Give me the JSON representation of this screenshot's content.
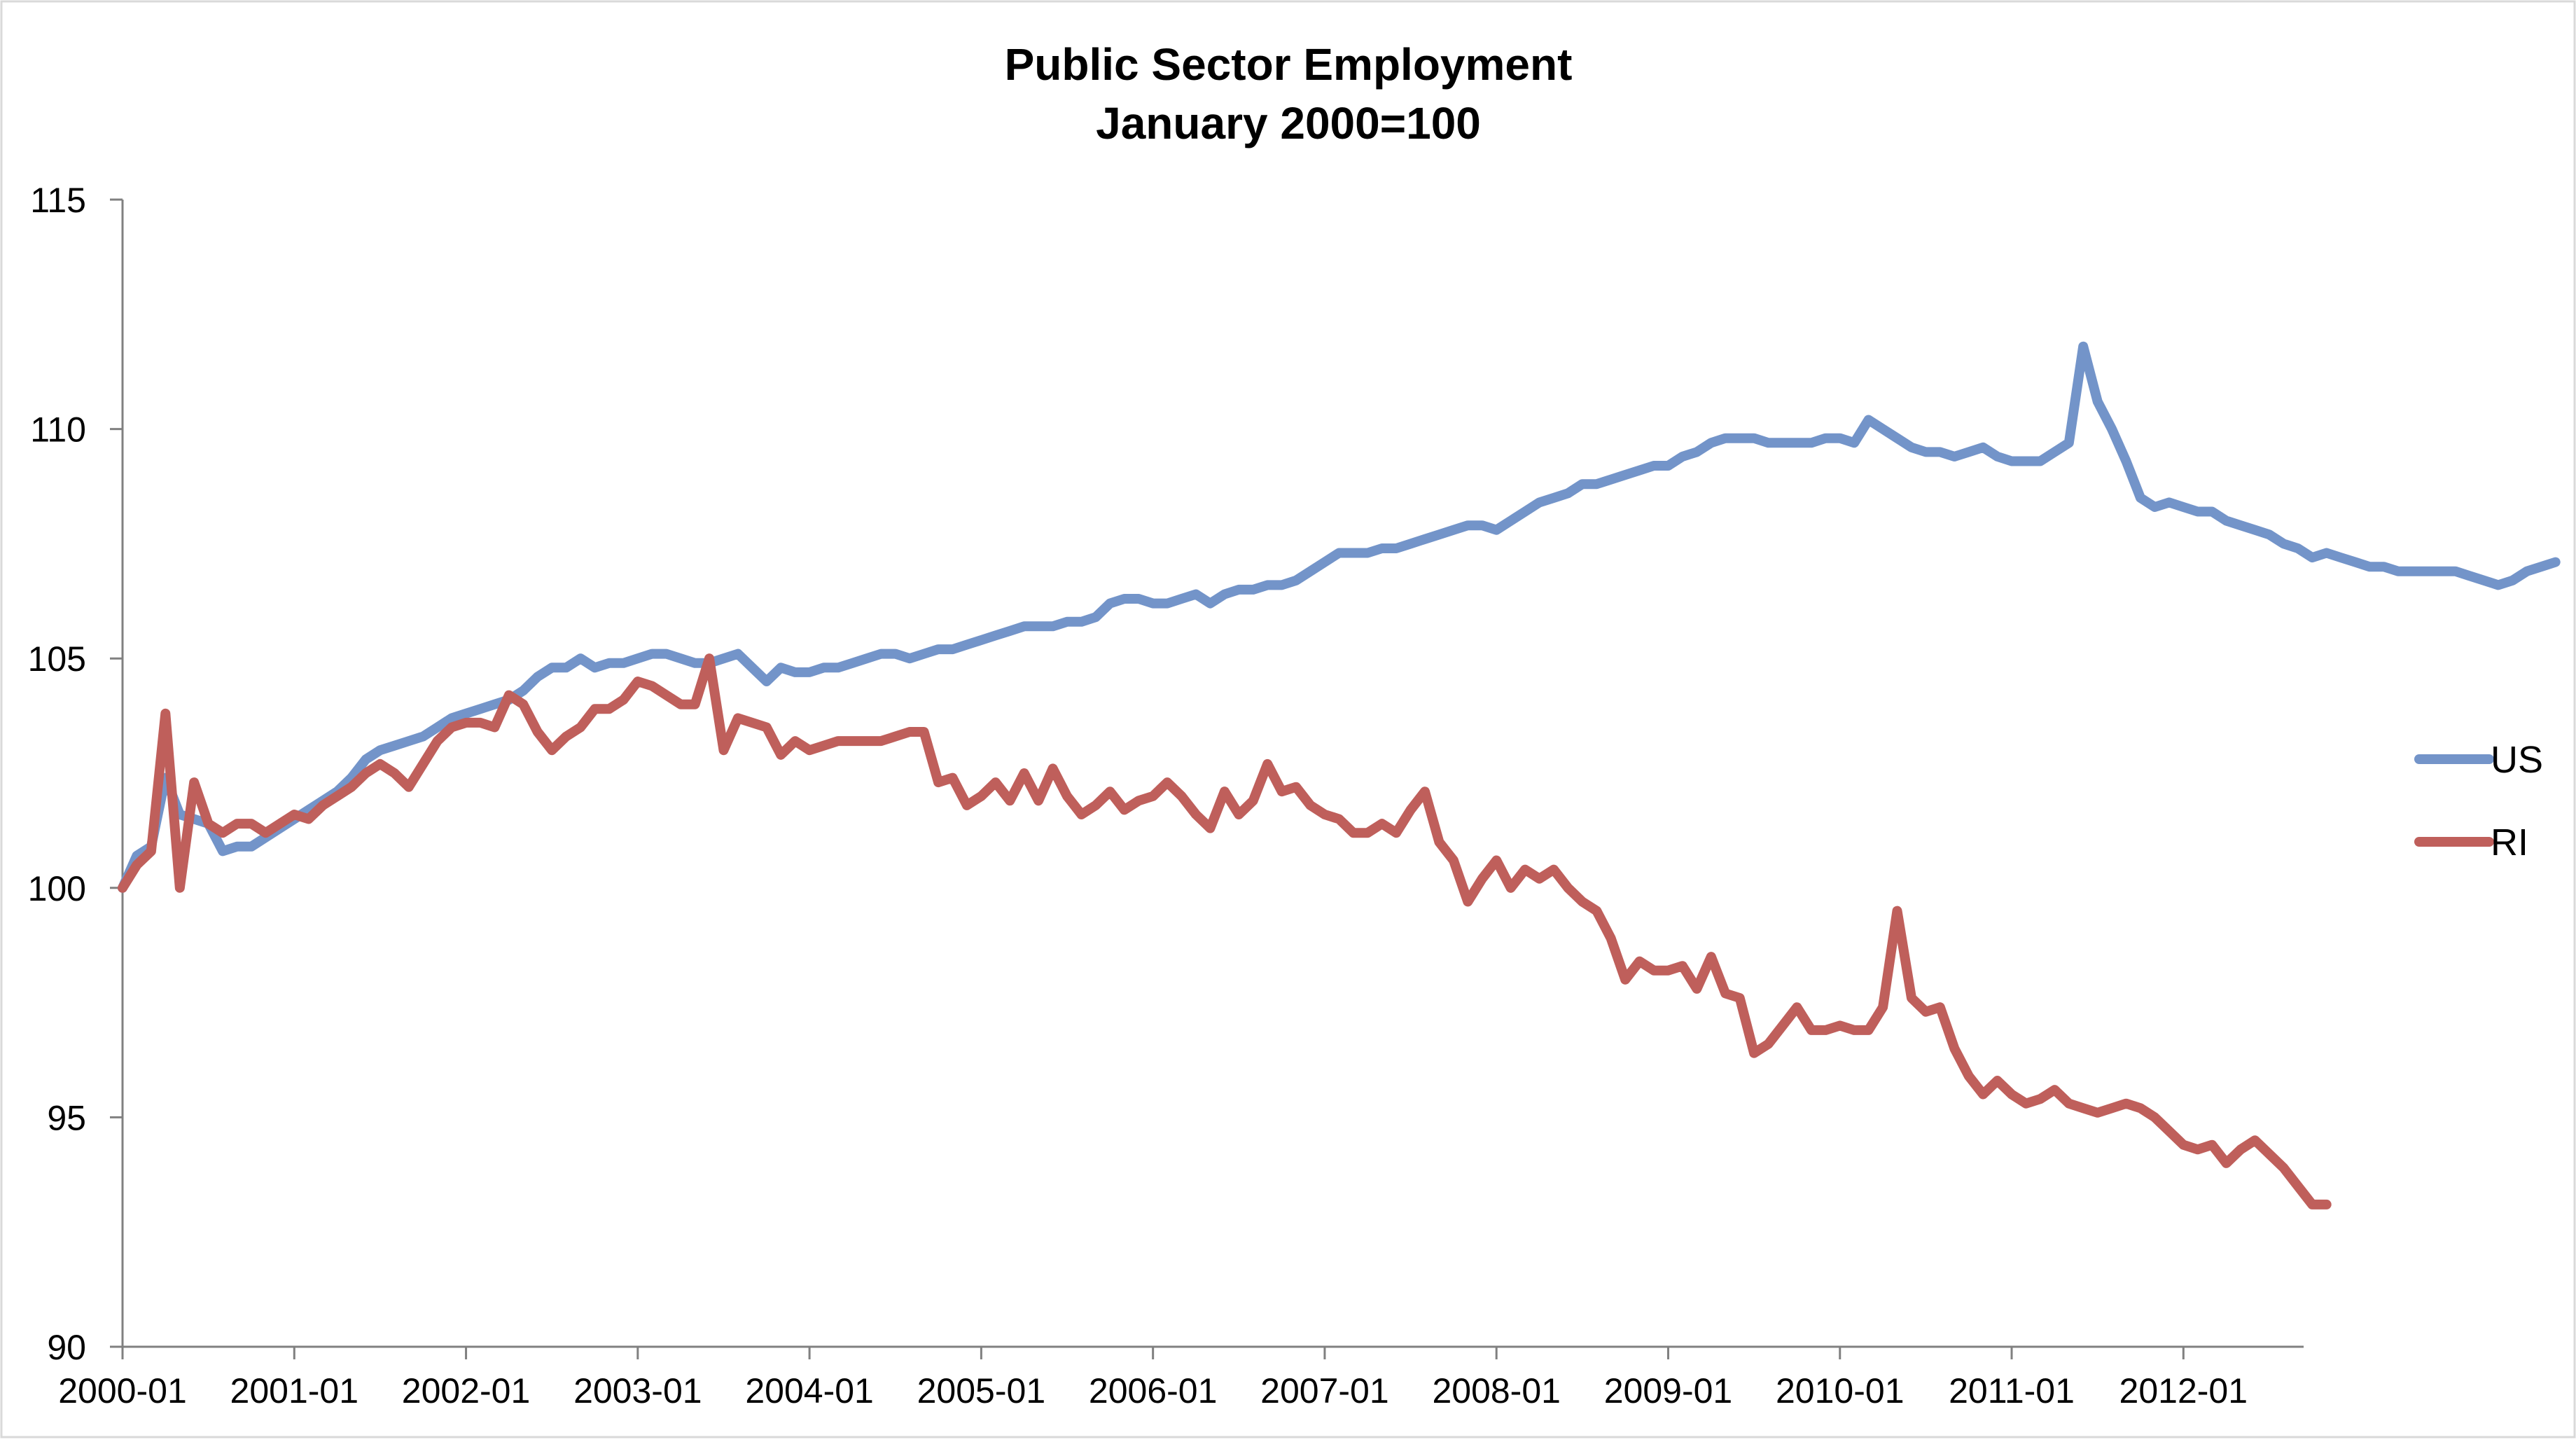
{
  "chart_data": {
    "type": "line",
    "title": "Public Sector Employment",
    "subtitle": "January 2000=100",
    "xlabel": "",
    "ylabel": "",
    "ylim": [
      90,
      115
    ],
    "y_ticks": [
      90,
      95,
      100,
      105,
      110,
      115
    ],
    "x_tick_labels": [
      "2000-01",
      "2001-01",
      "2002-01",
      "2003-01",
      "2004-01",
      "2005-01",
      "2006-01",
      "2007-01",
      "2008-01",
      "2009-01",
      "2010-01",
      "2011-01",
      "2012-01"
    ],
    "grid": false,
    "legend_position": "right",
    "series": [
      {
        "name": "US",
        "color": "#7394C9",
        "values": [
          100.0,
          100.7,
          100.9,
          102.4,
          101.6,
          101.5,
          101.4,
          100.8,
          100.9,
          100.9,
          101.1,
          101.3,
          101.5,
          101.7,
          101.9,
          102.1,
          102.4,
          102.8,
          103.0,
          103.1,
          103.2,
          103.3,
          103.5,
          103.7,
          103.8,
          103.9,
          104.0,
          104.1,
          104.3,
          104.6,
          104.8,
          104.8,
          105.0,
          104.8,
          104.9,
          104.9,
          105.0,
          105.1,
          105.1,
          105.0,
          104.9,
          104.9,
          105.0,
          105.1,
          104.8,
          104.5,
          104.8,
          104.7,
          104.7,
          104.8,
          104.8,
          104.9,
          105.0,
          105.1,
          105.1,
          105.0,
          105.1,
          105.2,
          105.2,
          105.3,
          105.4,
          105.5,
          105.6,
          105.7,
          105.7,
          105.7,
          105.8,
          105.8,
          105.9,
          106.2,
          106.3,
          106.3,
          106.2,
          106.2,
          106.3,
          106.4,
          106.2,
          106.4,
          106.5,
          106.5,
          106.6,
          106.6,
          106.7,
          106.9,
          107.1,
          107.3,
          107.3,
          107.3,
          107.4,
          107.4,
          107.5,
          107.6,
          107.7,
          107.8,
          107.9,
          107.9,
          107.8,
          108.0,
          108.2,
          108.4,
          108.5,
          108.6,
          108.8,
          108.8,
          108.9,
          109.0,
          109.1,
          109.2,
          109.2,
          109.4,
          109.5,
          109.7,
          109.8,
          109.8,
          109.8,
          109.7,
          109.7,
          109.7,
          109.7,
          109.8,
          109.8,
          109.7,
          110.2,
          110.0,
          109.8,
          109.6,
          109.5,
          109.5,
          109.4,
          109.5,
          109.6,
          109.4,
          109.3,
          109.3,
          109.3,
          109.5,
          109.7,
          111.8,
          110.6,
          110.0,
          109.3,
          108.5,
          108.3,
          108.4,
          108.3,
          108.2,
          108.2,
          108.0,
          107.9,
          107.8,
          107.7,
          107.5,
          107.4,
          107.2,
          107.3,
          107.2,
          107.1,
          107.0,
          107.0,
          106.9,
          106.9,
          106.9,
          106.9,
          106.9,
          106.8,
          106.7,
          106.6,
          106.7,
          106.9,
          107.0,
          107.1
        ]
      },
      {
        "name": "RI",
        "color": "#BF5F5B",
        "values": [
          100.0,
          100.5,
          100.8,
          103.8,
          100.0,
          102.3,
          101.4,
          101.2,
          101.4,
          101.4,
          101.2,
          101.4,
          101.6,
          101.5,
          101.8,
          102.0,
          102.2,
          102.5,
          102.7,
          102.5,
          102.2,
          102.7,
          103.2,
          103.5,
          103.6,
          103.6,
          103.5,
          104.2,
          104.0,
          103.4,
          103.0,
          103.3,
          103.5,
          103.9,
          103.9,
          104.1,
          104.5,
          104.4,
          104.2,
          104.0,
          104.0,
          105.0,
          103.0,
          103.7,
          103.6,
          103.5,
          102.9,
          103.2,
          103.0,
          103.1,
          103.2,
          103.2,
          103.2,
          103.2,
          103.3,
          103.4,
          103.4,
          102.3,
          102.4,
          101.8,
          102.0,
          102.3,
          101.9,
          102.5,
          101.9,
          102.6,
          102.0,
          101.6,
          101.8,
          102.1,
          101.7,
          101.9,
          102.0,
          102.3,
          102.0,
          101.6,
          101.3,
          102.1,
          101.6,
          101.9,
          102.7,
          102.1,
          102.2,
          101.8,
          101.6,
          101.5,
          101.2,
          101.2,
          101.4,
          101.2,
          101.7,
          102.1,
          101.0,
          100.6,
          99.7,
          100.2,
          100.6,
          100.0,
          100.4,
          100.2,
          100.4,
          100.0,
          99.7,
          99.5,
          98.9,
          98.0,
          98.4,
          98.2,
          98.2,
          98.3,
          97.8,
          98.5,
          97.7,
          97.6,
          96.4,
          96.6,
          97.0,
          97.4,
          96.9,
          96.9,
          97.0,
          96.9,
          96.9,
          97.4,
          99.5,
          97.6,
          97.3,
          97.4,
          96.5,
          95.9,
          95.5,
          95.8,
          95.5,
          95.3,
          95.4,
          95.6,
          95.3,
          95.2,
          95.1,
          95.2,
          95.3,
          95.2,
          95.0,
          94.7,
          94.4,
          94.3,
          94.4,
          94.0,
          94.3,
          94.5,
          94.2,
          93.9,
          93.5,
          93.1,
          93.1
        ]
      }
    ]
  }
}
